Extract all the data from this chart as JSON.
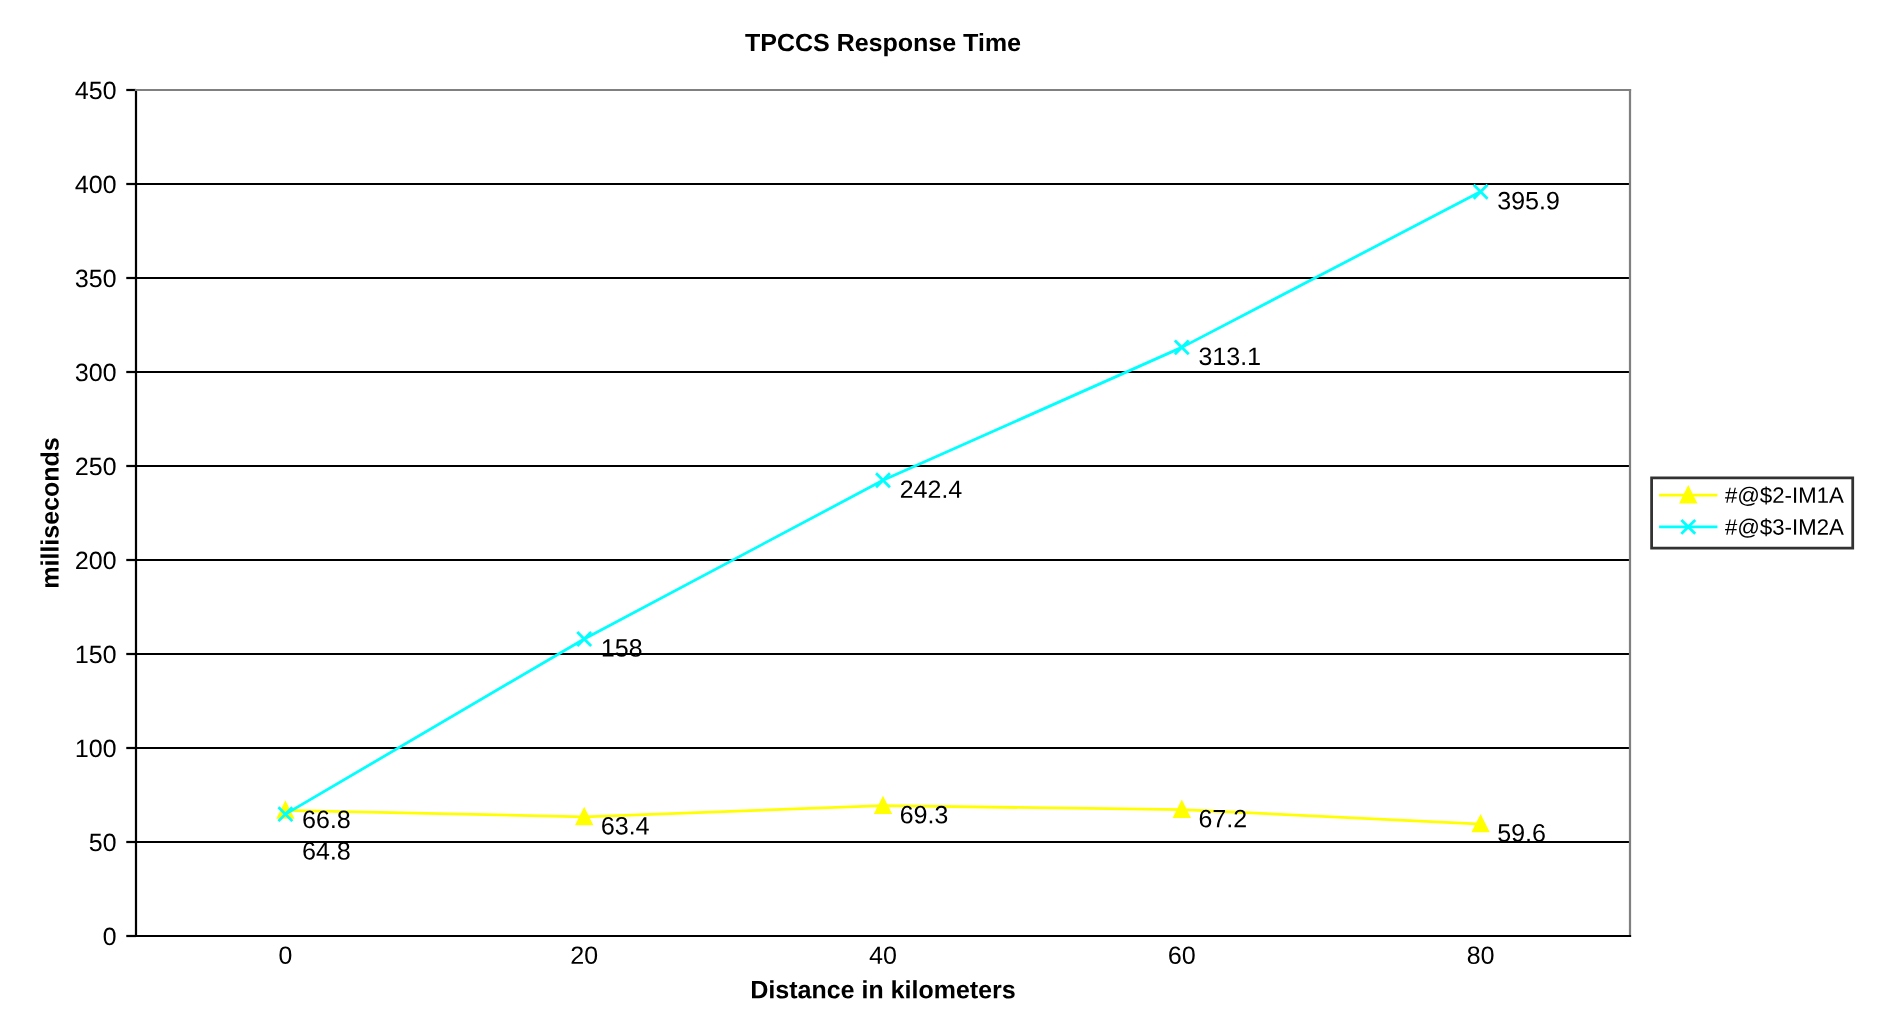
{
  "chart_data": {
    "type": "line",
    "title": "TPCCS Response Time",
    "xlabel": "Distance in kilometers",
    "ylabel": "milliseconds",
    "categories": [
      "0",
      "20",
      "40",
      "60",
      "80"
    ],
    "series": [
      {
        "name": "#@$2-IM1A",
        "color": "#ffff00",
        "marker": "triangle",
        "values": [
          66.8,
          63.4,
          69.3,
          67.2,
          59.6
        ]
      },
      {
        "name": "#@$3-IM2A",
        "color": "#00ffff",
        "marker": "cross",
        "values": [
          64.8,
          158,
          242.4,
          313.1,
          395.9
        ]
      }
    ],
    "ylim": [
      0,
      450
    ],
    "yticks": [
      0,
      50,
      100,
      150,
      200,
      250,
      300,
      350,
      400,
      450
    ],
    "grid": "y",
    "legend": "right",
    "data_labels": true
  }
}
